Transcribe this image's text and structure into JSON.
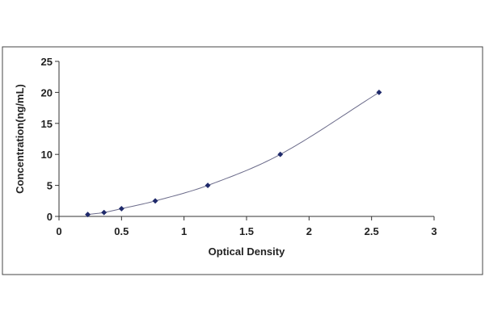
{
  "chart_data": {
    "type": "scatter",
    "xlabel": "Optical Density",
    "ylabel": "Concentration(ng/mL)",
    "xlim": [
      0,
      3
    ],
    "ylim": [
      0,
      25
    ],
    "xticks": [
      0,
      0.5,
      1,
      1.5,
      2,
      2.5,
      3
    ],
    "xtick_labels": [
      "0",
      "0.5",
      "1",
      "1.5",
      "2",
      "2.5",
      "3"
    ],
    "yticks": [
      0,
      5,
      10,
      15,
      20,
      25
    ],
    "ytick_labels": [
      "0",
      "5",
      "10",
      "15",
      "20",
      "25"
    ],
    "grid": false,
    "legend": "none",
    "series": [
      {
        "points": [
          {
            "x": 0.23,
            "y": 0.31
          },
          {
            "x": 0.36,
            "y": 0.63
          },
          {
            "x": 0.5,
            "y": 1.25
          },
          {
            "x": 0.77,
            "y": 2.5
          },
          {
            "x": 1.19,
            "y": 5
          },
          {
            "x": 1.77,
            "y": 10
          },
          {
            "x": 2.56,
            "y": 20
          }
        ],
        "trendline": "smooth-curve",
        "marker": "diamond",
        "color": "#1f2a6b",
        "line_color": "#6b6b8a"
      }
    ]
  }
}
